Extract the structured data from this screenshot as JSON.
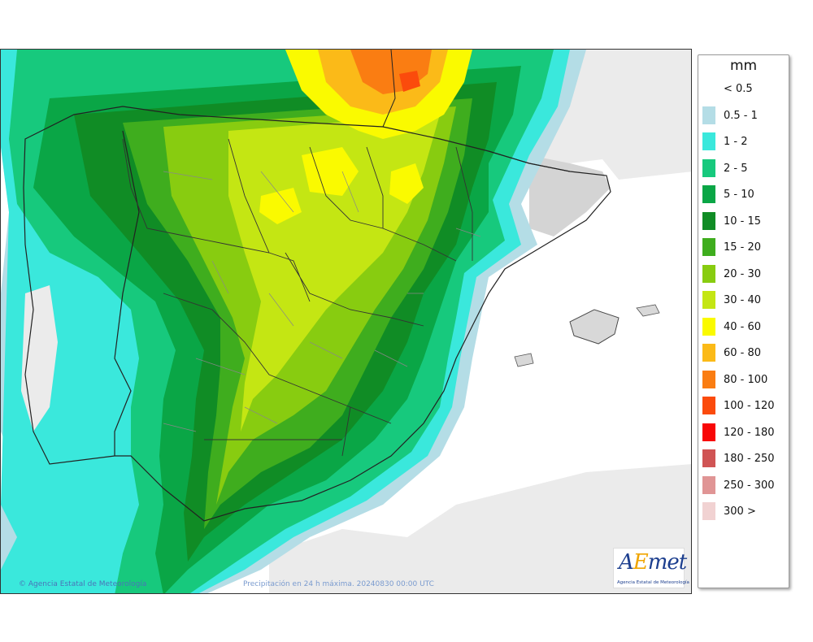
{
  "legend": {
    "unit": "mm",
    "items": [
      {
        "label": "< 0.5",
        "color": "#ffffff"
      },
      {
        "label": "0.5 - 1",
        "color": "#b4dde6"
      },
      {
        "label": "1 - 2",
        "color": "#3ae8dc"
      },
      {
        "label": "2 - 5",
        "color": "#17c97d"
      },
      {
        "label": "5 - 10",
        "color": "#0aa646"
      },
      {
        "label": "10 - 15",
        "color": "#108c25"
      },
      {
        "label": "15 - 20",
        "color": "#3fad1e"
      },
      {
        "label": "20 - 30",
        "color": "#88cc10"
      },
      {
        "label": "30 - 40",
        "color": "#c4e613"
      },
      {
        "label": "40 - 60",
        "color": "#fafa00"
      },
      {
        "label": "60 - 80",
        "color": "#fbba18"
      },
      {
        "label": "80 - 100",
        "color": "#fa7d12"
      },
      {
        "label": "100 - 120",
        "color": "#fb4b0c"
      },
      {
        "label": "120 - 180",
        "color": "#f80707"
      },
      {
        "label": "180 - 250",
        "color": "#d05454"
      },
      {
        "label": "250 - 300",
        "color": "#e09595"
      },
      {
        "label": "300 >",
        "color": "#f1d2d2"
      }
    ]
  },
  "map": {
    "copyright": "Agencia Estatal de Meteorología",
    "caption": "Precipitación en 24 h máxima. 20240830 00:00 UTC",
    "logo_text": "AEmet",
    "logo_subtitle": "Agencia Estatal de Meteorología"
  }
}
